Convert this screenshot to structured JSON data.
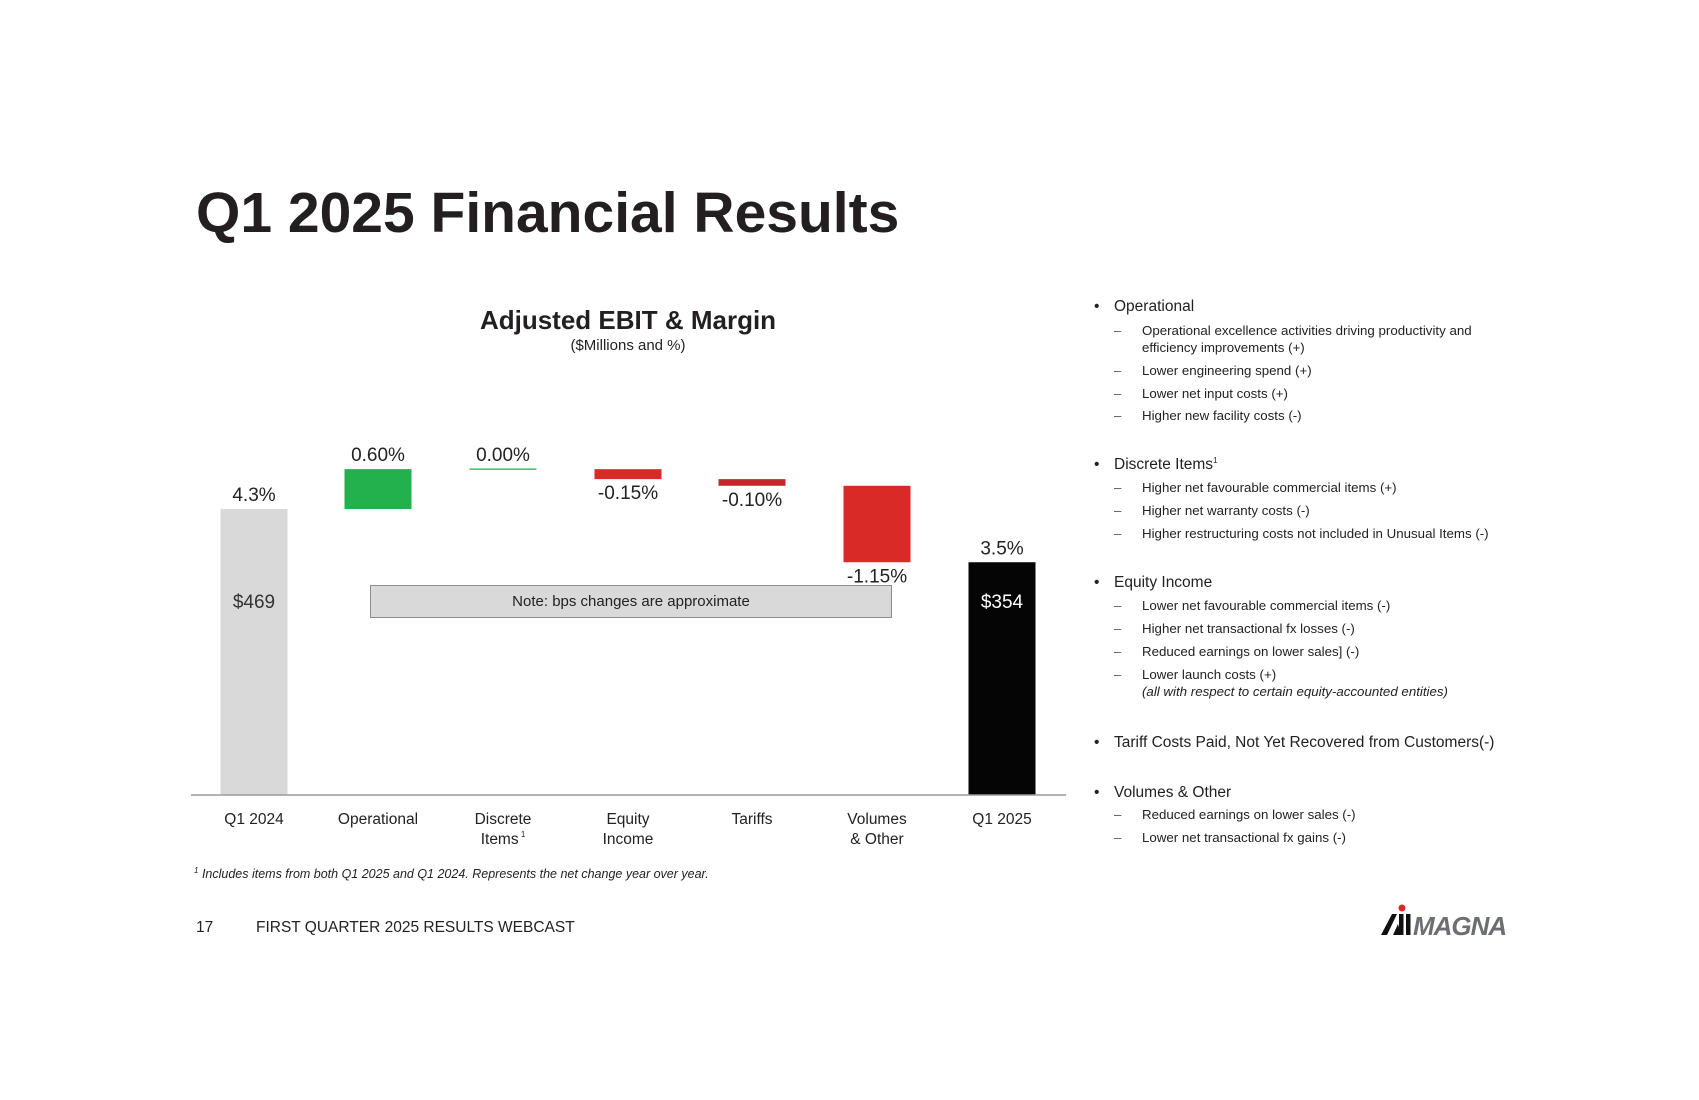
{
  "slide": {
    "title": "Q1 2025 Financial Results",
    "page_number": "17",
    "footer": "FIRST QUARTER 2025 RESULTS WEBCAST",
    "logo_text": "MAGNA"
  },
  "chart_data": {
    "type": "waterfall",
    "title": "Adjusted EBIT & Margin",
    "subtitle": "($Millions and %)",
    "categories": [
      "Q1 2024",
      "Operational",
      "Discrete Items¹",
      "Equity Income",
      "Tariffs",
      "Volumes & Other",
      "Q1 2025"
    ],
    "category_lines": [
      [
        "Q1 2024"
      ],
      [
        "Operational"
      ],
      [
        "Discrete",
        "Items"
      ],
      [
        "Equity",
        "Income"
      ],
      [
        "Tariffs"
      ],
      [
        "Volumes",
        "& Other"
      ],
      [
        "Q1 2025"
      ]
    ],
    "margin_values": [
      4.3,
      0.6,
      0.0,
      -0.15,
      -0.1,
      -1.15,
      3.5
    ],
    "kinds": [
      "total",
      "delta",
      "delta",
      "delta",
      "delta",
      "delta",
      "total"
    ],
    "value_labels": [
      "4.3%",
      "0.60%",
      "0.00%",
      "-0.15%",
      "-0.10%",
      "-1.15%",
      "3.5%"
    ],
    "ebit_labels": [
      "$469",
      "",
      "",
      "",
      "",
      "",
      "$354"
    ],
    "colors": [
      "#d9d9d9",
      "#22b14c",
      "#22b14c",
      "#d92a27",
      "#c1272d",
      "#d92a27",
      "#050505"
    ],
    "note": "Note:  bps changes are approximate",
    "footnote": "Includes items from both Q1 2025 and Q1 2024. Represents the net change year over year.",
    "footnote_marker": "1"
  },
  "commentary": [
    {
      "heading": "Operational",
      "sup": "",
      "items": [
        "Operational excellence activities driving productivity and",
        "efficiency improvements (+)",
        "Lower engineering spend (+)",
        "Lower net input costs (+)",
        "Higher new facility costs (-)"
      ]
    },
    {
      "heading": "Discrete Items",
      "sup": "1",
      "items": [
        "Higher net favourable commercial items (+)",
        "Higher net warranty costs (-)",
        "Higher restructuring costs not included in Unusual Items (-)"
      ]
    },
    {
      "heading": "Equity Income",
      "sup": "",
      "items": [
        "Lower net favourable commercial items (-)",
        "Higher net transactional fx losses (-)",
        "Reduced earnings on lower sales] (-)",
        "Lower launch costs (+)",
        "(all with respect to certain equity-accounted entities)"
      ]
    },
    {
      "heading": "Tariff Costs Paid, Not Yet Recovered from Customers(-)",
      "sup": "",
      "items": []
    },
    {
      "heading": "Volumes & Other",
      "sup": "",
      "items": [
        "Reduced earnings on lower sales (-)",
        "Lower net transactional fx gains (-)"
      ]
    }
  ]
}
